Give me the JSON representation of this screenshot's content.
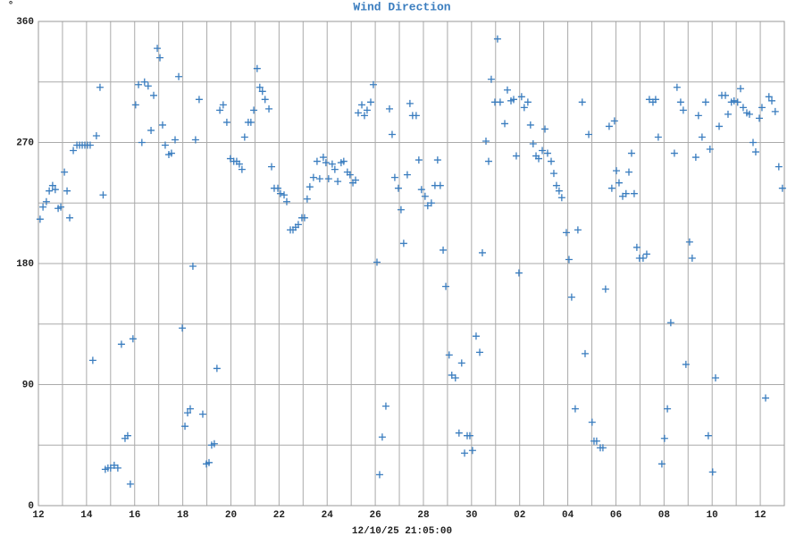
{
  "chart_data": {
    "type": "scatter",
    "title": "Wind Direction",
    "y_unit": "°",
    "xlabel": "12/10/25 21:05:00",
    "color": "#3a7dbf",
    "xlim": [
      0,
      31
    ],
    "xticks": [
      {
        "value": 0,
        "label": "12"
      },
      {
        "value": 2,
        "label": "14"
      },
      {
        "value": 4,
        "label": "16"
      },
      {
        "value": 6,
        "label": "18"
      },
      {
        "value": 8,
        "label": "20"
      },
      {
        "value": 10,
        "label": "22"
      },
      {
        "value": 12,
        "label": "24"
      },
      {
        "value": 14,
        "label": "26"
      },
      {
        "value": 16,
        "label": "28"
      },
      {
        "value": 18,
        "label": "30"
      },
      {
        "value": 20,
        "label": "02"
      },
      {
        "value": 22,
        "label": "04"
      },
      {
        "value": 24,
        "label": "06"
      },
      {
        "value": 26,
        "label": "08"
      },
      {
        "value": 28,
        "label": "10"
      },
      {
        "value": 30,
        "label": "12"
      }
    ],
    "xminor": [
      1,
      3,
      5,
      7,
      9,
      11,
      13,
      15,
      17,
      19,
      21,
      23,
      25,
      27,
      29,
      31
    ],
    "ylim": [
      0,
      360
    ],
    "yticks": [
      0,
      90,
      180,
      270,
      360
    ],
    "yminor": [
      45,
      135,
      225,
      315
    ],
    "grid": true,
    "x": [
      0.07,
      0.19,
      0.33,
      0.45,
      0.59,
      0.7,
      0.82,
      0.93,
      1.08,
      1.19,
      1.3,
      1.45,
      1.6,
      1.71,
      1.82,
      1.93,
      2.04,
      2.15,
      2.26,
      2.41,
      2.56,
      2.69,
      2.78,
      2.89,
      3.0,
      3.15,
      3.3,
      3.45,
      3.6,
      3.71,
      3.82,
      3.93,
      4.04,
      4.16,
      4.3,
      4.41,
      4.56,
      4.68,
      4.79,
      4.94,
      5.05,
      5.16,
      5.27,
      5.42,
      5.53,
      5.68,
      5.83,
      5.98,
      6.09,
      6.2,
      6.31,
      6.42,
      6.53,
      6.68,
      6.83,
      6.98,
      7.09,
      7.2,
      7.31,
      7.42,
      7.54,
      7.68,
      7.83,
      7.98,
      8.12,
      8.24,
      8.35,
      8.46,
      8.57,
      8.72,
      8.83,
      8.95,
      9.09,
      9.2,
      9.31,
      9.42,
      9.58,
      9.69,
      9.8,
      9.95,
      10.06,
      10.21,
      10.32,
      10.47,
      10.58,
      10.69,
      10.8,
      10.95,
      11.06,
      11.17,
      11.28,
      11.43,
      11.58,
      11.69,
      11.84,
      11.95,
      12.06,
      12.21,
      12.32,
      12.44,
      12.58,
      12.69,
      12.84,
      12.95,
      13.07,
      13.18,
      13.29,
      13.44,
      13.55,
      13.66,
      13.81,
      13.92,
      14.07,
      14.18,
      14.29,
      14.44,
      14.59,
      14.7,
      14.81,
      14.96,
      15.07,
      15.18,
      15.33,
      15.44,
      15.55,
      15.7,
      15.81,
      15.92,
      16.07,
      16.18,
      16.33,
      16.48,
      16.59,
      16.7,
      16.82,
      16.93,
      17.07,
      17.18,
      17.33,
      17.48,
      17.59,
      17.71,
      17.82,
      17.93,
      18.04,
      18.19,
      18.34,
      18.45,
      18.6,
      18.71,
      18.82,
      18.97,
      19.08,
      19.19,
      19.38,
      19.49,
      19.64,
      19.75,
      19.86,
      19.97,
      20.08,
      20.19,
      20.34,
      20.45,
      20.56,
      20.68,
      20.79,
      20.94,
      21.05,
      21.16,
      21.31,
      21.42,
      21.53,
      21.64,
      21.75,
      21.94,
      22.05,
      22.16,
      22.31,
      22.42,
      22.6,
      22.72,
      22.87,
      23.01,
      23.09,
      23.2,
      23.35,
      23.46,
      23.57,
      23.72,
      23.83,
      23.94,
      24.02,
      24.13,
      24.28,
      24.42,
      24.54,
      24.65,
      24.76,
      24.87,
      24.98,
      25.13,
      25.28,
      25.39,
      25.54,
      25.65,
      25.76,
      25.91,
      26.02,
      26.14,
      26.28,
      26.43,
      26.54,
      26.69,
      26.8,
      26.91,
      27.06,
      27.17,
      27.32,
      27.43,
      27.58,
      27.73,
      27.84,
      27.91,
      28.02,
      28.14,
      28.29,
      28.4,
      28.55,
      28.66,
      28.8,
      28.91,
      29.06,
      29.18,
      29.29,
      29.44,
      29.55,
      29.7,
      29.81,
      29.96,
      30.07,
      30.22,
      30.36,
      30.48,
      30.62,
      30.77,
      30.92
    ],
    "values": [
      213,
      222,
      226,
      234,
      238,
      235,
      221,
      222,
      248,
      234,
      214,
      264,
      268,
      268,
      268,
      268,
      268,
      268,
      108,
      275,
      311,
      231,
      27,
      28,
      28,
      30,
      28,
      120,
      50,
      52,
      16,
      124,
      298,
      313,
      270,
      315,
      312,
      279,
      305,
      340,
      333,
      283,
      268,
      261,
      262,
      272,
      319,
      132,
      59,
      69,
      72,
      178,
      272,
      302,
      68,
      31,
      32,
      45,
      46,
      102,
      294,
      298,
      285,
      258,
      256,
      256,
      254,
      250,
      274,
      285,
      285,
      294,
      325,
      311,
      308,
      302,
      295,
      252,
      236,
      236,
      232,
      231,
      226,
      205,
      205,
      207,
      209,
      214,
      214,
      228,
      237,
      244,
      256,
      243,
      259,
      255,
      243,
      254,
      250,
      241,
      255,
      256,
      248,
      246,
      240,
      242,
      292,
      298,
      290,
      294,
      300,
      313,
      181,
      23,
      51,
      74,
      295,
      276,
      244,
      236,
      220,
      195,
      246,
      299,
      290,
      290,
      257,
      235,
      230,
      223,
      225,
      238,
      257,
      238,
      190,
      163,
      112,
      97,
      95,
      54,
      106,
      39,
      52,
      52,
      41,
      126,
      114,
      188,
      271,
      256,
      317,
      300,
      347,
      300,
      284,
      309,
      301,
      302,
      260,
      173,
      304,
      296,
      300,
      283,
      269,
      260,
      258,
      264,
      280,
      262,
      256,
      247,
      238,
      234,
      229,
      203,
      183,
      155,
      72,
      205,
      300,
      113,
      276,
      62,
      48,
      48,
      43,
      43,
      161,
      282,
      236,
      286,
      249,
      240,
      230,
      232,
      248,
      262,
      232,
      192,
      184,
      184,
      187,
      302,
      300,
      302,
      274,
      31,
      50,
      72,
      136,
      262,
      311,
      300,
      294,
      105,
      196,
      184,
      259,
      290,
      274,
      300,
      52,
      265,
      25,
      95,
      282,
      305,
      305,
      291,
      300,
      301,
      300,
      310,
      296,
      292,
      291,
      270,
      263,
      288,
      296,
      80,
      304,
      301,
      293,
      252,
      236
    ]
  }
}
